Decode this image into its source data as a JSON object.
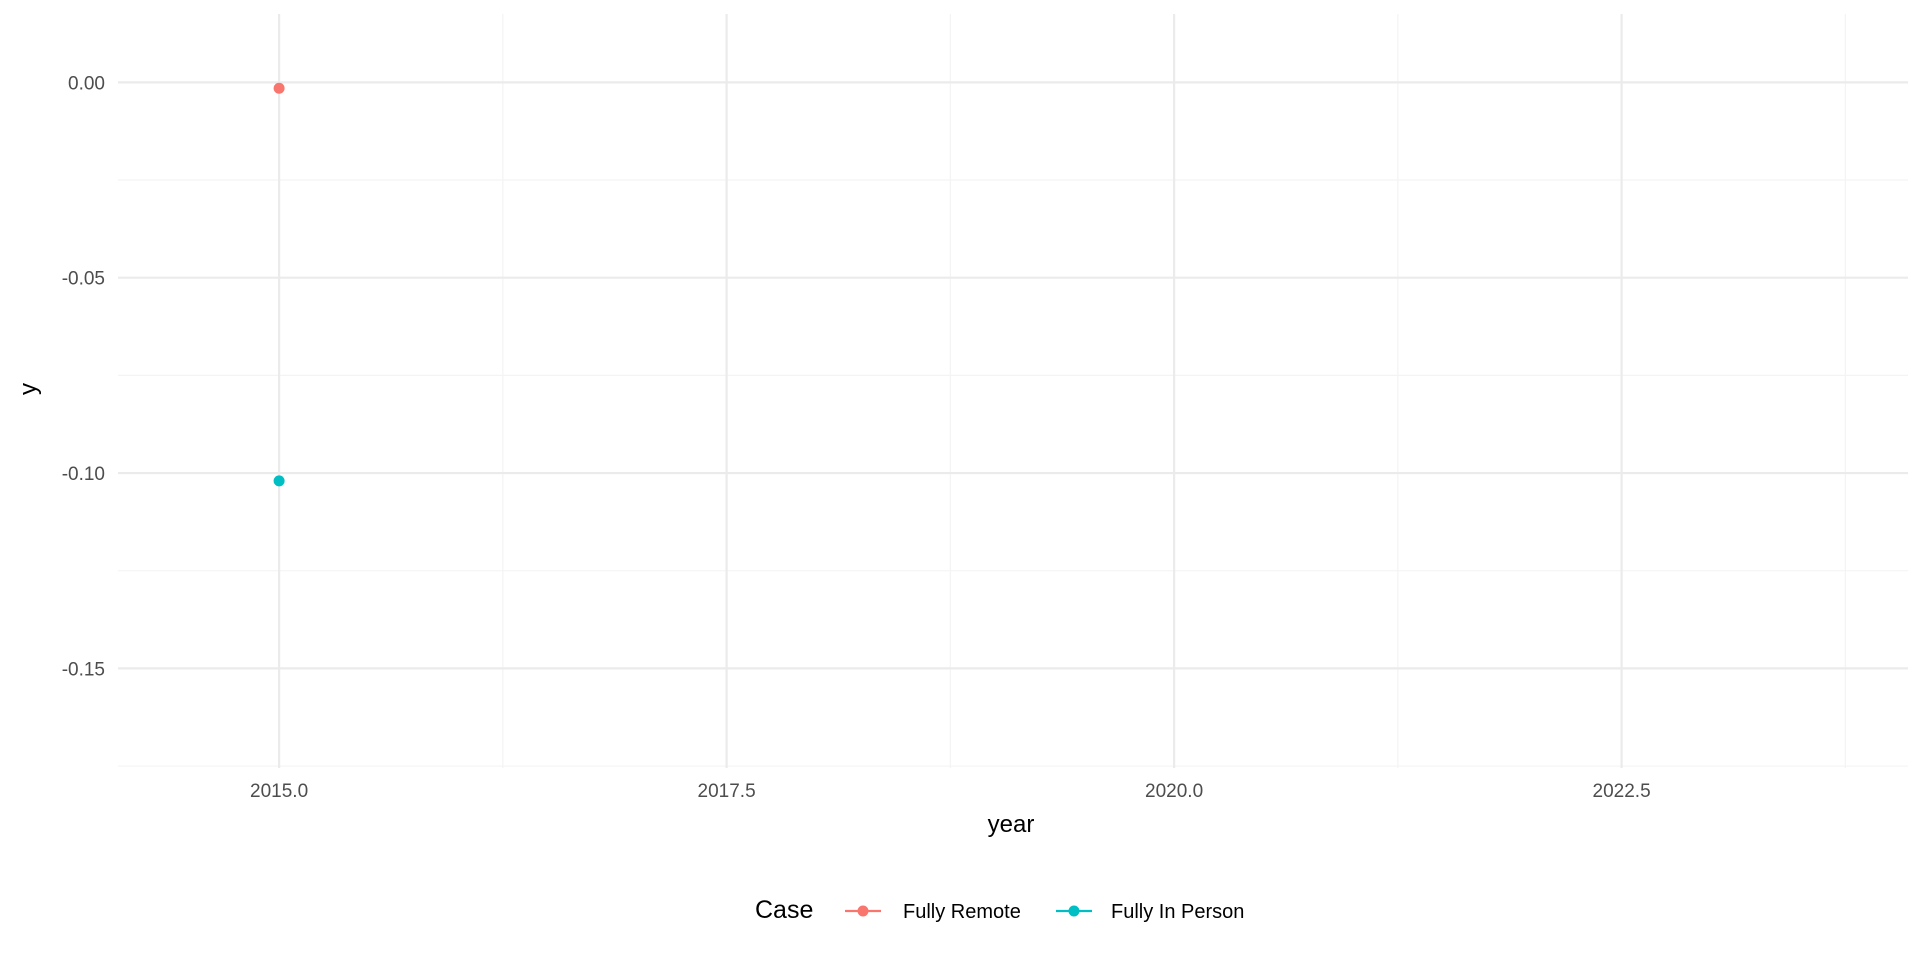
{
  "chart_data": {
    "type": "scatter",
    "xlabel": "year",
    "ylabel": "y",
    "xlim": [
      2014.1,
      2024.1
    ],
    "ylim": [
      -0.1755,
      0.0175
    ],
    "x_ticks": [
      2015.0,
      2017.5,
      2020.0,
      2022.5
    ],
    "x_tick_labels": [
      "2015.0",
      "2017.5",
      "2020.0",
      "2022.5"
    ],
    "y_ticks": [
      0.0,
      -0.05,
      -0.1,
      -0.15
    ],
    "y_tick_labels": [
      "0.00",
      "-0.05",
      "-0.10",
      "-0.15"
    ],
    "grid": true,
    "legend": {
      "title": "Case",
      "placement": "bottom"
    },
    "series": [
      {
        "name": "Fully Remote",
        "color": "#F8766D",
        "x": [
          2015.0
        ],
        "y": [
          -0.0015
        ]
      },
      {
        "name": "Fully In Person",
        "color": "#00BFC4",
        "x": [
          2015.0
        ],
        "y": [
          -0.102
        ]
      }
    ]
  }
}
